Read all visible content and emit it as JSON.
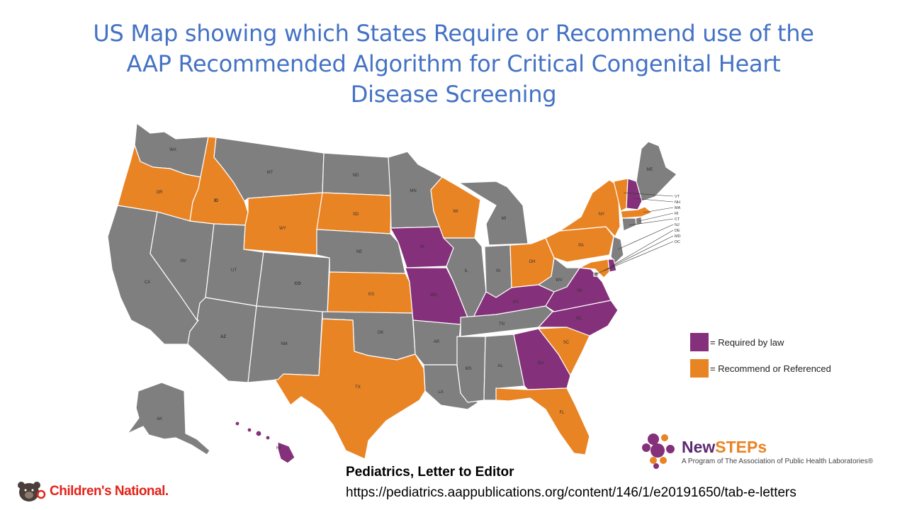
{
  "title": {
    "line1": "US Map showing which States Require or Recommend use of the",
    "line2": "AAP Recommended Algorithm for Critical Congenital Heart",
    "line3": "Disease Screening"
  },
  "colors": {
    "required": "#84307a",
    "recommend": "#e98424",
    "none": "#7f7f7f"
  },
  "states": {
    "WA": "none",
    "OR": "recommend",
    "CA": "none",
    "NV": "none",
    "ID": "recommend",
    "MT": "none",
    "WY": "recommend",
    "UT": "none",
    "AZ": "none",
    "CO": "none",
    "NM": "none",
    "ND": "none",
    "SD": "recommend",
    "NE": "none",
    "KS": "recommend",
    "OK": "none",
    "TX": "recommend",
    "MN": "none",
    "IA": "required",
    "MO": "required",
    "AR": "none",
    "LA": "none",
    "WI": "recommend",
    "IL": "none",
    "MI": "none",
    "IN": "none",
    "OH": "recommend",
    "KY": "required",
    "TN": "none",
    "MS": "none",
    "AL": "none",
    "GA": "required",
    "FL": "recommend",
    "SC": "recommend",
    "NC": "required",
    "VA": "required",
    "WV": "none",
    "PA": "recommend",
    "NY": "recommend",
    "ME": "none",
    "VT": "recommend",
    "NH": "required",
    "MA": "recommend",
    "RI": "none",
    "CT": "none",
    "NJ": "none",
    "DE": "required",
    "MD": "recommend",
    "DC": "none",
    "AK": "none",
    "HI": "required"
  },
  "small_state_labels": [
    "VT",
    "NH",
    "MA",
    "RI",
    "CT",
    "NJ",
    "DE",
    "MD",
    "DC"
  ],
  "legend": {
    "required_label": "= Required by law",
    "recommend_label": "= Recommend or Referenced"
  },
  "citation": {
    "title": "Pediatrics, Letter to Editor",
    "url": "https://pediatrics.aappublications.org/content/146/1/e20191650/tab-e-letters"
  },
  "logos": {
    "newsteps_prefix": "New",
    "newsteps_suffix": "STEPs",
    "newsteps_tagline": "A Program of The Association of Public Health Laboratories®",
    "childrens_national": "Children's National."
  }
}
